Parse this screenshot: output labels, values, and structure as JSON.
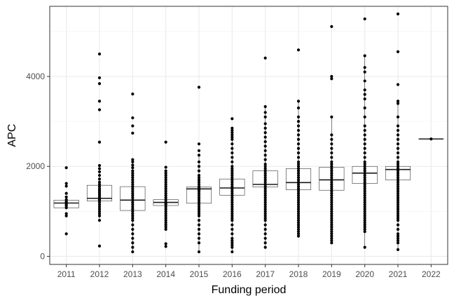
{
  "chart_data": {
    "type": "box",
    "title": "",
    "xlabel": "Funding period",
    "ylabel": "APC",
    "categories": [
      "2011",
      "2012",
      "2013",
      "2014",
      "2015",
      "2016",
      "2017",
      "2018",
      "2019",
      "2020",
      "2021",
      "2022"
    ],
    "ylim": [
      -180,
      5560
    ],
    "yticks": [
      0,
      2000,
      4000
    ],
    "grid": true,
    "boxes": [
      {
        "q1": 1080,
        "median": 1185,
        "q3": 1250,
        "whisker_low": 1080,
        "whisker_high": 1250,
        "points": [
          1970,
          1620,
          1560,
          1400,
          1320,
          1260,
          1220,
          1200,
          1180,
          1150,
          1120,
          1080,
          950,
          900,
          500
        ]
      },
      {
        "q1": 1230,
        "median": 1290,
        "q3": 1580,
        "whisker_low": 800,
        "whisker_high": 2000,
        "points": [
          4500,
          3970,
          3840,
          3450,
          3260,
          2540,
          2020,
          1950,
          1880,
          1800,
          1720,
          1650,
          1600,
          1550,
          1500,
          1460,
          1420,
          1380,
          1340,
          1300,
          1280,
          1260,
          1240,
          1200,
          1150,
          1100,
          1050,
          1000,
          950,
          900,
          800,
          230
        ]
      },
      {
        "q1": 1020,
        "median": 1250,
        "q3": 1550,
        "whisker_low": 100,
        "whisker_high": 2100,
        "points": [
          3610,
          3080,
          2900,
          2740,
          2150,
          2100,
          2030,
          1970,
          1900,
          1850,
          1800,
          1750,
          1700,
          1650,
          1600,
          1550,
          1500,
          1450,
          1400,
          1350,
          1300,
          1250,
          1200,
          1150,
          1100,
          1050,
          1000,
          950,
          900,
          850,
          800,
          700,
          600,
          500,
          400,
          300,
          200,
          100
        ]
      },
      {
        "q1": 1130,
        "median": 1200,
        "q3": 1260,
        "whisker_low": 1130,
        "whisker_high": 1260,
        "points": [
          2540,
          1980,
          1900,
          1850,
          1800,
          1750,
          1700,
          1650,
          1600,
          1550,
          1500,
          1450,
          1400,
          1350,
          1300,
          1250,
          1200,
          1180,
          1150,
          1100,
          1050,
          1000,
          950,
          900,
          850,
          800,
          750,
          700,
          650,
          600,
          280,
          220
        ]
      },
      {
        "q1": 1180,
        "median": 1500,
        "q3": 1540,
        "whisker_low": 100,
        "whisker_high": 2250,
        "points": [
          3760,
          2500,
          2350,
          2250,
          2100,
          2000,
          1900,
          1800,
          1750,
          1700,
          1650,
          1600,
          1550,
          1520,
          1500,
          1480,
          1450,
          1400,
          1350,
          1300,
          1250,
          1200,
          1150,
          1100,
          1050,
          1000,
          950,
          900,
          800,
          700,
          600,
          500,
          400,
          300,
          100
        ]
      },
      {
        "q1": 1360,
        "median": 1520,
        "q3": 1720,
        "whisker_low": 100,
        "whisker_high": 2800,
        "points": [
          3060,
          2850,
          2800,
          2750,
          2700,
          2650,
          2600,
          2500,
          2400,
          2300,
          2200,
          2100,
          2000,
          1950,
          1900,
          1850,
          1800,
          1750,
          1700,
          1650,
          1600,
          1550,
          1500,
          1450,
          1400,
          1350,
          1300,
          1250,
          1200,
          1150,
          1100,
          1050,
          1000,
          950,
          900,
          850,
          800,
          700,
          600,
          500,
          400,
          350,
          300,
          250,
          200,
          100
        ]
      },
      {
        "q1": 1540,
        "median": 1600,
        "q3": 1900,
        "whisker_low": 200,
        "whisker_high": 3330,
        "points": [
          4410,
          3330,
          3200,
          3100,
          2950,
          2850,
          2750,
          2650,
          2550,
          2450,
          2350,
          2250,
          2150,
          2050,
          2000,
          1950,
          1900,
          1850,
          1800,
          1750,
          1700,
          1650,
          1600,
          1550,
          1500,
          1450,
          1400,
          1350,
          1300,
          1250,
          1200,
          1150,
          1100,
          1050,
          1000,
          950,
          900,
          850,
          800,
          700,
          600,
          500,
          400,
          300,
          200
        ]
      },
      {
        "q1": 1480,
        "median": 1640,
        "q3": 1950,
        "whisker_low": 450,
        "whisker_high": 3450,
        "points": [
          4590,
          3450,
          3300,
          3100,
          3000,
          2900,
          2800,
          2700,
          2600,
          2500,
          2400,
          2300,
          2200,
          2100,
          2050,
          2000,
          1950,
          1900,
          1850,
          1800,
          1750,
          1700,
          1650,
          1600,
          1550,
          1500,
          1450,
          1400,
          1350,
          1300,
          1250,
          1200,
          1150,
          1100,
          1050,
          1000,
          950,
          900,
          850,
          800,
          750,
          700,
          650,
          600,
          550,
          500,
          450
        ]
      },
      {
        "q1": 1470,
        "median": 1700,
        "q3": 1980,
        "whisker_low": 300,
        "whisker_high": 3100,
        "points": [
          5110,
          4000,
          3950,
          3100,
          2700,
          2600,
          2500,
          2400,
          2300,
          2200,
          2100,
          2050,
          2000,
          1950,
          1900,
          1850,
          1800,
          1750,
          1700,
          1650,
          1600,
          1550,
          1500,
          1450,
          1400,
          1350,
          1300,
          1250,
          1200,
          1150,
          1100,
          1050,
          1000,
          950,
          900,
          850,
          800,
          750,
          700,
          650,
          600,
          550,
          500,
          450,
          400,
          350,
          300
        ]
      },
      {
        "q1": 1620,
        "median": 1850,
        "q3": 2000,
        "whisker_low": 200,
        "whisker_high": 4450,
        "points": [
          5280,
          4460,
          4200,
          4100,
          3900,
          3700,
          3600,
          3500,
          3300,
          3100,
          2900,
          2800,
          2700,
          2600,
          2500,
          2400,
          2300,
          2200,
          2100,
          2050,
          2000,
          1950,
          1900,
          1850,
          1800,
          1750,
          1700,
          1650,
          1600,
          1550,
          1500,
          1450,
          1400,
          1350,
          1300,
          1250,
          1200,
          1150,
          1100,
          1050,
          1000,
          950,
          900,
          850,
          800,
          750,
          700,
          650,
          600,
          550,
          200
        ]
      },
      {
        "q1": 1700,
        "median": 1930,
        "q3": 2000,
        "whisker_low": 150,
        "whisker_high": 3450,
        "points": [
          5390,
          4550,
          3820,
          3450,
          3400,
          3100,
          2900,
          2800,
          2700,
          2600,
          2500,
          2400,
          2300,
          2200,
          2100,
          2050,
          2000,
          1950,
          1900,
          1850,
          1800,
          1750,
          1700,
          1650,
          1600,
          1550,
          1500,
          1450,
          1400,
          1350,
          1300,
          1250,
          1200,
          1150,
          1100,
          1050,
          1000,
          950,
          900,
          850,
          800,
          700,
          600,
          500,
          450,
          400,
          350,
          300,
          150
        ]
      },
      {
        "q1": 2610,
        "median": 2610,
        "q3": 2610,
        "whisker_low": 2610,
        "whisker_high": 2610,
        "points": [
          2610
        ]
      }
    ]
  }
}
